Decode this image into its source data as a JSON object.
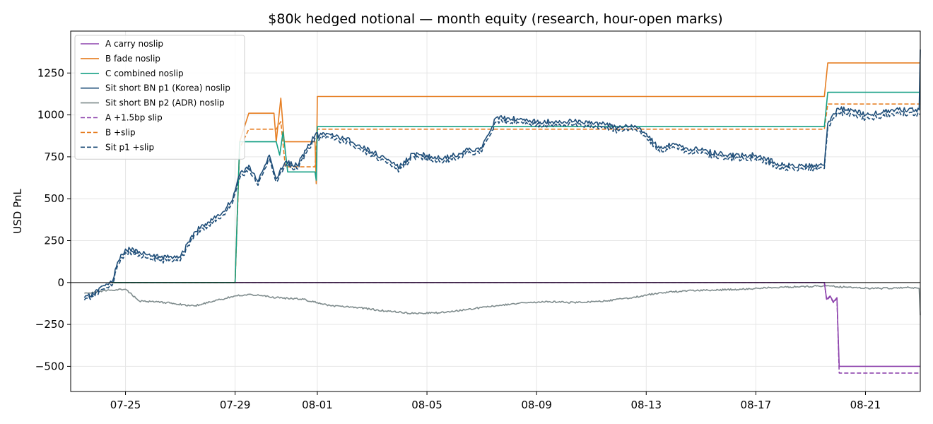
{
  "chart_data": {
    "type": "line",
    "title": "$80k hedged notional — month equity (research, hour-open marks)",
    "xlabel": "",
    "ylabel": "USD PnL",
    "x_range": [
      "2025-07-23",
      "2025-08-23"
    ],
    "ylim": [
      -650,
      1500
    ],
    "y_ticks": [
      -500,
      -250,
      0,
      250,
      500,
      750,
      1000,
      1250
    ],
    "y_tick_labels": [
      "−500",
      "−250",
      "0",
      "250",
      "500",
      "750",
      "1000",
      "1250"
    ],
    "x_ticks": [
      "2025-07-25",
      "2025-07-29",
      "2025-08-01",
      "2025-08-05",
      "2025-08-09",
      "2025-08-13",
      "2025-08-17",
      "2025-08-21"
    ],
    "x_tick_labels": [
      "07-25",
      "07-29",
      "08-01",
      "08-05",
      "08-09",
      "08-13",
      "08-17",
      "08-21"
    ],
    "grid": true,
    "zero_line": true,
    "legend_position": "upper left",
    "series": [
      {
        "name": "A carry noslip",
        "color": "#8e44ad",
        "dash": "solid",
        "points": [
          [
            "2025-07-24T12:00",
            0
          ],
          [
            "2025-08-19T12:00",
            0
          ],
          [
            "2025-08-19T14:00",
            -100
          ],
          [
            "2025-08-19T17:00",
            -80
          ],
          [
            "2025-08-19T20:00",
            -115
          ],
          [
            "2025-08-19T23:00",
            -90
          ],
          [
            "2025-08-20T01:00",
            -500
          ],
          [
            "2025-08-23T00:00",
            -500
          ]
        ]
      },
      {
        "name": "B fade noslip",
        "color": "#e67e22",
        "dash": "solid",
        "points": [
          [
            "2025-07-24T12:00",
            0
          ],
          [
            "2025-07-29T00:00",
            0
          ],
          [
            "2025-07-29T04:00",
            840
          ],
          [
            "2025-07-29T12:00",
            1010
          ],
          [
            "2025-07-30T10:00",
            1010
          ],
          [
            "2025-07-30T12:00",
            840
          ],
          [
            "2025-07-30T16:00",
            1100
          ],
          [
            "2025-07-30T19:00",
            840
          ],
          [
            "2025-07-31T00:00",
            840
          ],
          [
            "2025-07-31T22:00",
            840
          ],
          [
            "2025-07-31T23:00",
            590
          ],
          [
            "2025-08-01T00:00",
            1110
          ],
          [
            "2025-08-19T12:00",
            1110
          ],
          [
            "2025-08-19T15:00",
            1310
          ],
          [
            "2025-08-23T00:00",
            1310
          ]
        ]
      },
      {
        "name": "C combined noslip",
        "color": "#16a085",
        "dash": "solid",
        "points": [
          [
            "2025-07-24T12:00",
            0
          ],
          [
            "2025-07-29T00:00",
            0
          ],
          [
            "2025-07-29T04:00",
            840
          ],
          [
            "2025-07-30T12:00",
            840
          ],
          [
            "2025-07-30T15:00",
            760
          ],
          [
            "2025-07-30T18:00",
            900
          ],
          [
            "2025-07-30T22:00",
            660
          ],
          [
            "2025-07-31T22:00",
            660
          ],
          [
            "2025-07-31T23:00",
            610
          ],
          [
            "2025-08-01T00:00",
            930
          ],
          [
            "2025-08-19T12:00",
            930
          ],
          [
            "2025-08-19T15:00",
            1135
          ],
          [
            "2025-08-23T00:00",
            1135
          ]
        ]
      },
      {
        "name": "Sit short BN p1 (Korea) noslip",
        "color": "#1f4e79",
        "dash": "solid",
        "noise": 15,
        "seed": 11,
        "points": [
          [
            "2025-07-23T12:00",
            -90
          ],
          [
            "2025-07-23T20:00",
            -70
          ],
          [
            "2025-07-24T04:00",
            -20
          ],
          [
            "2025-07-24T12:00",
            0
          ],
          [
            "2025-07-24T18:00",
            130
          ],
          [
            "2025-07-25T00:00",
            200
          ],
          [
            "2025-07-25T12:00",
            185
          ],
          [
            "2025-07-26T00:00",
            155
          ],
          [
            "2025-07-26T12:00",
            150
          ],
          [
            "2025-07-27T00:00",
            150
          ],
          [
            "2025-07-27T12:00",
            300
          ],
          [
            "2025-07-28T00:00",
            360
          ],
          [
            "2025-07-28T12:00",
            410
          ],
          [
            "2025-07-28T22:00",
            500
          ],
          [
            "2025-07-29T04:00",
            640
          ],
          [
            "2025-07-29T12:00",
            700
          ],
          [
            "2025-07-29T20:00",
            600
          ],
          [
            "2025-07-30T06:00",
            760
          ],
          [
            "2025-07-30T12:00",
            620
          ],
          [
            "2025-07-30T20:00",
            720
          ],
          [
            "2025-07-31T06:00",
            700
          ],
          [
            "2025-07-31T14:00",
            790
          ],
          [
            "2025-07-31T22:00",
            880
          ],
          [
            "2025-08-01T12:00",
            880
          ],
          [
            "2025-08-02T00:00",
            860
          ],
          [
            "2025-08-02T12:00",
            820
          ],
          [
            "2025-08-03T00:00",
            780
          ],
          [
            "2025-08-03T12:00",
            740
          ],
          [
            "2025-08-04T00:00",
            690
          ],
          [
            "2025-08-04T12:00",
            770
          ],
          [
            "2025-08-05T00:00",
            760
          ],
          [
            "2025-08-05T12:00",
            740
          ],
          [
            "2025-08-06T00:00",
            760
          ],
          [
            "2025-08-06T12:00",
            790
          ],
          [
            "2025-08-07T00:00",
            800
          ],
          [
            "2025-08-07T12:00",
            980
          ],
          [
            "2025-08-08T00:00",
            980
          ],
          [
            "2025-08-09T00:00",
            960
          ],
          [
            "2025-08-10T00:00",
            960
          ],
          [
            "2025-08-11T00:00",
            960
          ],
          [
            "2025-08-11T12:00",
            940
          ],
          [
            "2025-08-12T00:00",
            925
          ],
          [
            "2025-08-12T12:00",
            930
          ],
          [
            "2025-08-13T00:00",
            890
          ],
          [
            "2025-08-13T12:00",
            800
          ],
          [
            "2025-08-14T00:00",
            830
          ],
          [
            "2025-08-14T12:00",
            800
          ],
          [
            "2025-08-15T00:00",
            790
          ],
          [
            "2025-08-16T00:00",
            760
          ],
          [
            "2025-08-17T00:00",
            760
          ],
          [
            "2025-08-18T00:00",
            700
          ],
          [
            "2025-08-19T12:00",
            700
          ],
          [
            "2025-08-19T15:00",
            950
          ],
          [
            "2025-08-20T00:00",
            1040
          ],
          [
            "2025-08-20T12:00",
            1030
          ],
          [
            "2025-08-21T00:00",
            1000
          ],
          [
            "2025-08-22T00:00",
            1030
          ],
          [
            "2025-08-22T23:00",
            1030
          ],
          [
            "2025-08-23T00:00",
            1390
          ]
        ]
      },
      {
        "name": "Sit short BN p2 (ADR) noslip",
        "color": "#7f8c8d",
        "dash": "solid",
        "noise": 5,
        "seed": 23,
        "points": [
          [
            "2025-07-23T12:00",
            -65
          ],
          [
            "2025-07-24T00:00",
            -55
          ],
          [
            "2025-07-24T12:00",
            -45
          ],
          [
            "2025-07-25T00:00",
            -40
          ],
          [
            "2025-07-25T12:00",
            -110
          ],
          [
            "2025-07-26T12:00",
            -120
          ],
          [
            "2025-07-27T12:00",
            -140
          ],
          [
            "2025-07-28T12:00",
            -100
          ],
          [
            "2025-07-29T00:00",
            -80
          ],
          [
            "2025-07-29T12:00",
            -70
          ],
          [
            "2025-07-30T12:00",
            -90
          ],
          [
            "2025-07-31T12:00",
            -100
          ],
          [
            "2025-08-01T12:00",
            -140
          ],
          [
            "2025-08-02T12:00",
            -150
          ],
          [
            "2025-08-03T12:00",
            -170
          ],
          [
            "2025-08-04T12:00",
            -185
          ],
          [
            "2025-08-05T12:00",
            -180
          ],
          [
            "2025-08-06T12:00",
            -160
          ],
          [
            "2025-08-07T12:00",
            -140
          ],
          [
            "2025-08-08T12:00",
            -120
          ],
          [
            "2025-08-09T12:00",
            -115
          ],
          [
            "2025-08-10T12:00",
            -120
          ],
          [
            "2025-08-11T12:00",
            -110
          ],
          [
            "2025-08-12T12:00",
            -90
          ],
          [
            "2025-08-13T12:00",
            -60
          ],
          [
            "2025-08-14T12:00",
            -50
          ],
          [
            "2025-08-15T12:00",
            -45
          ],
          [
            "2025-08-16T12:00",
            -40
          ],
          [
            "2025-08-17T12:00",
            -30
          ],
          [
            "2025-08-18T12:00",
            -25
          ],
          [
            "2025-08-19T12:00",
            -20
          ],
          [
            "2025-08-20T12:00",
            -30
          ],
          [
            "2025-08-21T12:00",
            -35
          ],
          [
            "2025-08-22T12:00",
            -30
          ],
          [
            "2025-08-22T23:00",
            -35
          ],
          [
            "2025-08-23T00:00",
            -195
          ]
        ]
      },
      {
        "name": "A +1.5bp slip",
        "color": "#8e44ad",
        "dash": "dashed",
        "points": [
          [
            "2025-07-24T12:00",
            0
          ],
          [
            "2025-08-19T12:00",
            0
          ],
          [
            "2025-08-19T14:00",
            -105
          ],
          [
            "2025-08-19T17:00",
            -85
          ],
          [
            "2025-08-19T20:00",
            -120
          ],
          [
            "2025-08-19T23:00",
            -95
          ],
          [
            "2025-08-20T01:00",
            -540
          ],
          [
            "2025-08-23T00:00",
            -540
          ]
        ]
      },
      {
        "name": "B +slip",
        "color": "#e67e22",
        "dash": "dashed",
        "points": [
          [
            "2025-07-24T12:00",
            0
          ],
          [
            "2025-07-29T00:00",
            0
          ],
          [
            "2025-07-29T04:00",
            800
          ],
          [
            "2025-07-29T12:00",
            915
          ],
          [
            "2025-07-30T12:00",
            915
          ],
          [
            "2025-07-30T16:00",
            960
          ],
          [
            "2025-07-30T20:00",
            690
          ],
          [
            "2025-07-31T22:00",
            690
          ],
          [
            "2025-08-01T00:00",
            915
          ],
          [
            "2025-08-19T12:00",
            915
          ],
          [
            "2025-08-19T15:00",
            1065
          ],
          [
            "2025-08-23T00:00",
            1065
          ]
        ]
      },
      {
        "name": "Sit p1 +slip",
        "color": "#1f4e79",
        "dash": "dashed",
        "noise": 15,
        "seed": 11,
        "points": [
          [
            "2025-07-23T12:00",
            -105
          ],
          [
            "2025-07-23T20:00",
            -85
          ],
          [
            "2025-07-24T04:00",
            -40
          ],
          [
            "2025-07-24T12:00",
            -20
          ],
          [
            "2025-07-24T18:00",
            110
          ],
          [
            "2025-07-25T00:00",
            180
          ],
          [
            "2025-07-25T12:00",
            165
          ],
          [
            "2025-07-26T00:00",
            135
          ],
          [
            "2025-07-26T12:00",
            130
          ],
          [
            "2025-07-27T00:00",
            130
          ],
          [
            "2025-07-27T12:00",
            280
          ],
          [
            "2025-07-28T00:00",
            340
          ],
          [
            "2025-07-28T12:00",
            390
          ],
          [
            "2025-07-28T22:00",
            480
          ],
          [
            "2025-07-29T04:00",
            620
          ],
          [
            "2025-07-29T12:00",
            680
          ],
          [
            "2025-07-29T20:00",
            580
          ],
          [
            "2025-07-30T06:00",
            740
          ],
          [
            "2025-07-30T12:00",
            600
          ],
          [
            "2025-07-30T20:00",
            700
          ],
          [
            "2025-07-31T06:00",
            680
          ],
          [
            "2025-07-31T14:00",
            770
          ],
          [
            "2025-07-31T22:00",
            860
          ],
          [
            "2025-08-01T12:00",
            860
          ],
          [
            "2025-08-02T00:00",
            840
          ],
          [
            "2025-08-02T12:00",
            800
          ],
          [
            "2025-08-03T00:00",
            760
          ],
          [
            "2025-08-03T12:00",
            720
          ],
          [
            "2025-08-04T00:00",
            670
          ],
          [
            "2025-08-04T12:00",
            750
          ],
          [
            "2025-08-05T00:00",
            740
          ],
          [
            "2025-08-05T12:00",
            720
          ],
          [
            "2025-08-06T00:00",
            740
          ],
          [
            "2025-08-06T12:00",
            770
          ],
          [
            "2025-08-07T00:00",
            780
          ],
          [
            "2025-08-07T12:00",
            955
          ],
          [
            "2025-08-08T00:00",
            960
          ],
          [
            "2025-08-09T00:00",
            940
          ],
          [
            "2025-08-10T00:00",
            940
          ],
          [
            "2025-08-11T00:00",
            940
          ],
          [
            "2025-08-11T12:00",
            920
          ],
          [
            "2025-08-12T00:00",
            905
          ],
          [
            "2025-08-12T12:00",
            910
          ],
          [
            "2025-08-13T00:00",
            870
          ],
          [
            "2025-08-13T12:00",
            780
          ],
          [
            "2025-08-14T00:00",
            810
          ],
          [
            "2025-08-14T12:00",
            780
          ],
          [
            "2025-08-15T00:00",
            770
          ],
          [
            "2025-08-16T00:00",
            740
          ],
          [
            "2025-08-17T00:00",
            740
          ],
          [
            "2025-08-18T00:00",
            680
          ],
          [
            "2025-08-19T12:00",
            680
          ],
          [
            "2025-08-19T15:00",
            925
          ],
          [
            "2025-08-20T00:00",
            1015
          ],
          [
            "2025-08-20T12:00",
            1005
          ],
          [
            "2025-08-21T00:00",
            975
          ],
          [
            "2025-08-22T00:00",
            1005
          ],
          [
            "2025-08-22T23:00",
            1005
          ],
          [
            "2025-08-23T00:00",
            1005
          ]
        ]
      }
    ]
  }
}
